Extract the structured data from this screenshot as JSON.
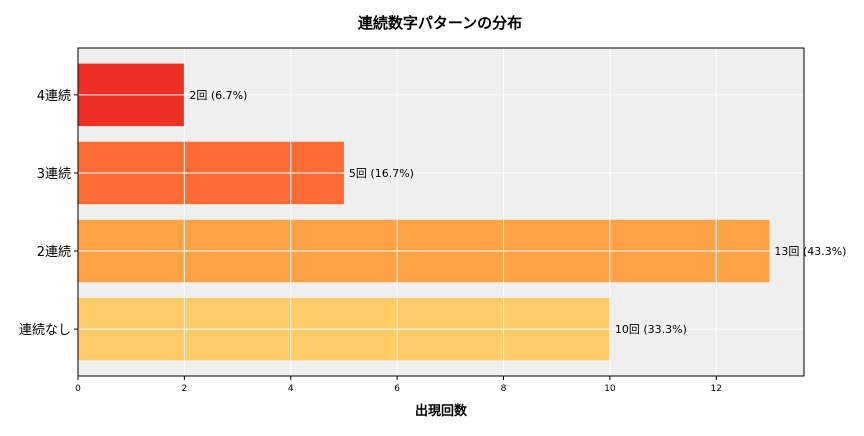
{
  "chart_data": {
    "type": "bar",
    "orientation": "horizontal",
    "title": "連続数字パターンの分布",
    "xlabel": "出現回数",
    "ylabel": "",
    "categories": [
      "連続なし",
      "2連続",
      "3連続",
      "4連続"
    ],
    "values": [
      10,
      13,
      5,
      2
    ],
    "data_labels": [
      "10回 (33.3%)",
      "13回 (43.3%)",
      "5回 (16.7%)",
      "2回 (6.7%)"
    ],
    "colors": [
      "#fecb67",
      "#fea245",
      "#fe6b35",
      "#ee3024"
    ],
    "xlim": [
      0,
      13.65
    ],
    "xticks": [
      0,
      2,
      4,
      6,
      8,
      10,
      12
    ],
    "grid": true,
    "background": "#efefef"
  }
}
